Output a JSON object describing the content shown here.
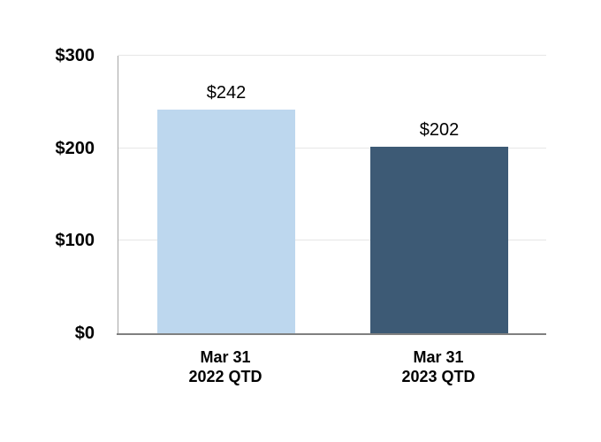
{
  "chart_data": {
    "type": "bar",
    "title": "",
    "xlabel": "",
    "ylabel": "",
    "categories": [
      [
        "Mar 31",
        "2022 QTD"
      ],
      [
        "Mar 31",
        "2023 QTD"
      ]
    ],
    "values": [
      242,
      202
    ],
    "value_labels": [
      "$242",
      "$202"
    ],
    "bar_colors": [
      "#BDD7EE",
      "#3D5A75"
    ],
    "ylim": [
      0,
      300
    ],
    "yticks": [
      0,
      100,
      200,
      300
    ],
    "ytick_labels": [
      "$0",
      "$100",
      "$200",
      "$300"
    ],
    "grid": true,
    "legend": false
  },
  "colors": {
    "background": "#FFFFFF",
    "text": "#000000",
    "bar_light_blue": "#BDD7EE",
    "bar_dark_blue": "#3D5A75",
    "gridline": "#E6E6E6",
    "y_axis_line": "#A6A6A6",
    "x_axis_line": "#808080"
  }
}
